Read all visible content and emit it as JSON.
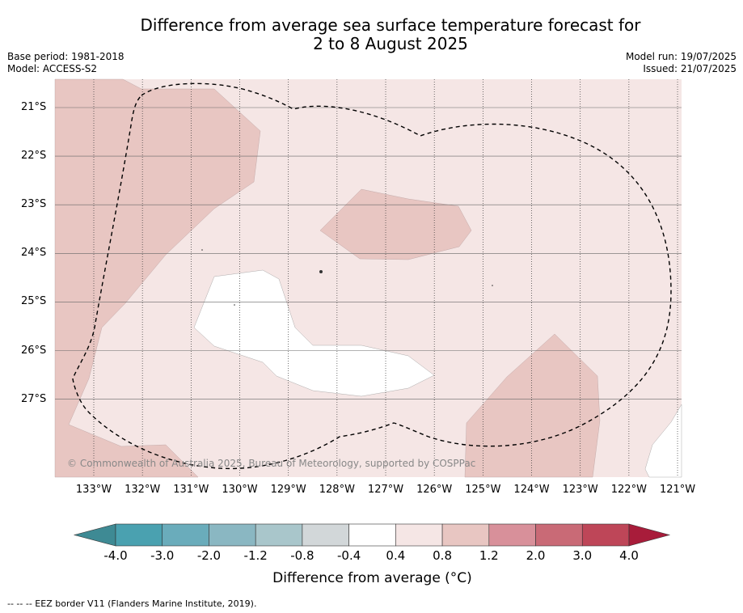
{
  "title_line1": "Difference from average sea surface temperature forecast for",
  "title_line2": "2 to 8 August 2025",
  "base_period": "Base period: 1981-2018",
  "model": "Model: ACCESS-S2",
  "model_run": "Model run: 19/07/2025",
  "issued": "Issued: 21/07/2025",
  "lat_labels": [
    "21°S",
    "22°S",
    "23°S",
    "24°S",
    "25°S",
    "26°S",
    "27°S"
  ],
  "lon_labels": [
    "133°W",
    "132°W",
    "131°W",
    "130°W",
    "129°W",
    "128°W",
    "127°W",
    "126°W",
    "125°W",
    "124°W",
    "123°W",
    "122°W",
    "121°W"
  ],
  "copyright": "© Commonwealth of Australia 2025, Bureau of Meteorology, supported by COSPPac",
  "colorbar": {
    "ticks": [
      "-4.0",
      "-3.0",
      "-2.0",
      "-1.2",
      "-0.8",
      "-0.4",
      "0.4",
      "0.8",
      "1.2",
      "2.0",
      "3.0",
      "4.0"
    ],
    "colors": [
      "#4aa1b0",
      "#6aacbb",
      "#8ab7c2",
      "#a9c6cb",
      "#d2d7d9",
      "#ffffff",
      "#f5e6e5",
      "#e8c6c2",
      "#d8909a",
      "#c96a76",
      "#be4658"
    ],
    "under_color": "#3e8a94",
    "over_color": "#a81c3a",
    "label": "Difference from average (°C)"
  },
  "legend_footer": "--  --  -- EEZ border V11 (Flanders Marine Institute, 2019).",
  "map_fill_colors": {
    "base": "#f5e6e5",
    "warm": "#e8c6c2",
    "neutral": "#ffffff"
  }
}
